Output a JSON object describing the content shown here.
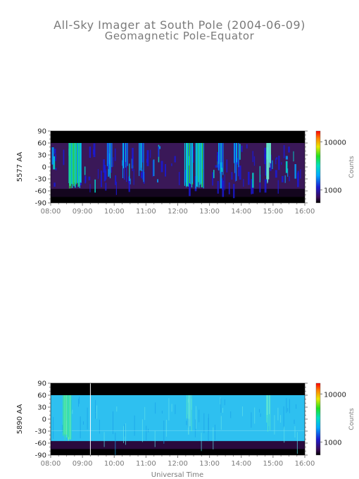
{
  "title": "All-Sky Imager at South Pole (2004-06-09)",
  "subtitle": "Geomagnetic Pole-Equator",
  "chart_data": [
    {
      "type": "heatmap",
      "ylabel": "5577 AA",
      "xlabel": "",
      "xticks": [
        "08:00",
        "09:00",
        "10:00",
        "11:00",
        "12:00",
        "13:00",
        "14:00",
        "15:00",
        "16:00"
      ],
      "yticks": [
        90,
        60,
        30,
        0,
        -30,
        -60,
        -90
      ],
      "xlim": [
        "08:00",
        "16:00"
      ],
      "ylim": [
        -90,
        90
      ],
      "valid_lat_range": [
        -55,
        60
      ],
      "colorbar": {
        "label": "Counts",
        "scale": "log",
        "ticks": [
          10000,
          1000
        ],
        "tick_labels": [
          "10000",
          "1000"
        ]
      },
      "background": "#3a1858",
      "bright_bands": [
        {
          "time": "08:40",
          "level": "high"
        },
        {
          "time": "08:50",
          "level": "high"
        },
        {
          "time": "09:50",
          "level": "medium"
        },
        {
          "time": "10:20",
          "level": "medium"
        },
        {
          "time": "10:50",
          "level": "medium"
        },
        {
          "time": "12:20",
          "level": "high"
        },
        {
          "time": "12:40",
          "level": "high"
        },
        {
          "time": "13:20",
          "level": "medium"
        },
        {
          "time": "13:50",
          "level": "medium"
        },
        {
          "time": "14:50",
          "level": "low"
        }
      ]
    },
    {
      "type": "heatmap",
      "ylabel": "5890 AA",
      "xlabel": "Universal Time",
      "xticks": [
        "08:00",
        "09:00",
        "10:00",
        "11:00",
        "12:00",
        "13:00",
        "14:00",
        "15:00",
        "16:00"
      ],
      "yticks": [
        90,
        60,
        30,
        0,
        -30,
        -60,
        -90
      ],
      "xlim": [
        "08:00",
        "16:00"
      ],
      "ylim": [
        -90,
        90
      ],
      "valid_lat_range": [
        -55,
        60
      ],
      "colorbar": {
        "label": "Counts",
        "scale": "log",
        "ticks": [
          10000,
          1000
        ],
        "tick_labels": [
          "10000",
          "1000"
        ]
      },
      "background": "#2ec0f0",
      "marker_line_time": "09:15",
      "bright_bands": [
        {
          "time": "08:30",
          "level": "high"
        },
        {
          "time": "12:20",
          "level": "low"
        },
        {
          "time": "14:50",
          "level": "low"
        }
      ]
    }
  ]
}
